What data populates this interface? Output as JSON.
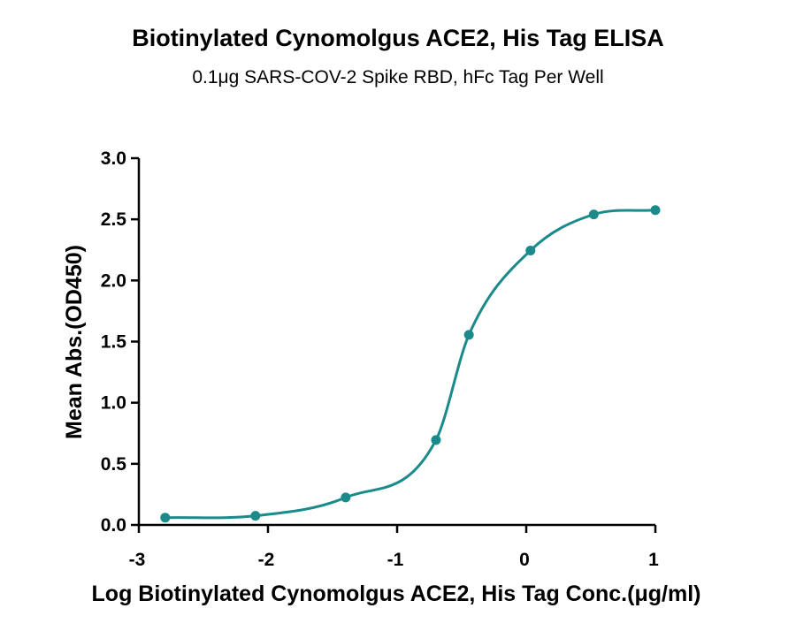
{
  "chart_data": {
    "type": "scatter",
    "title": "Biotinylated Cynomolgus ACE2, His Tag ELISA",
    "subtitle": "0.1μg SARS-COV-2 Spike RBD, hFc Tag Per Well",
    "xlabel": "Log Biotinylated Cynomolgus ACE2, His Tag Conc.(μg/ml)",
    "ylabel": "Mean Abs.(OD450)",
    "xlim": [
      -3,
      1
    ],
    "ylim": [
      0,
      3.0
    ],
    "x_ticks": [
      -3,
      -2,
      -1,
      0,
      1
    ],
    "x_tick_labels": [
      "-3",
      "-2",
      "-1",
      "0",
      "1"
    ],
    "y_ticks": [
      0,
      0.5,
      1.0,
      1.5,
      2.0,
      2.5,
      3.0
    ],
    "y_tick_labels": [
      "0.0",
      "0.5",
      "1.0",
      "1.5",
      "2.0",
      "2.5",
      "3.0"
    ],
    "grid": false,
    "fit": "sigmoidal",
    "color": "#1a8a8a",
    "series": [
      {
        "x": [
          -2.796,
          -2.097,
          -1.398,
          -0.699,
          -0.444,
          0.033,
          0.523,
          1.0
        ],
        "y": [
          0.06,
          0.075,
          0.225,
          0.695,
          1.555,
          2.245,
          2.54,
          2.575
        ]
      }
    ]
  }
}
